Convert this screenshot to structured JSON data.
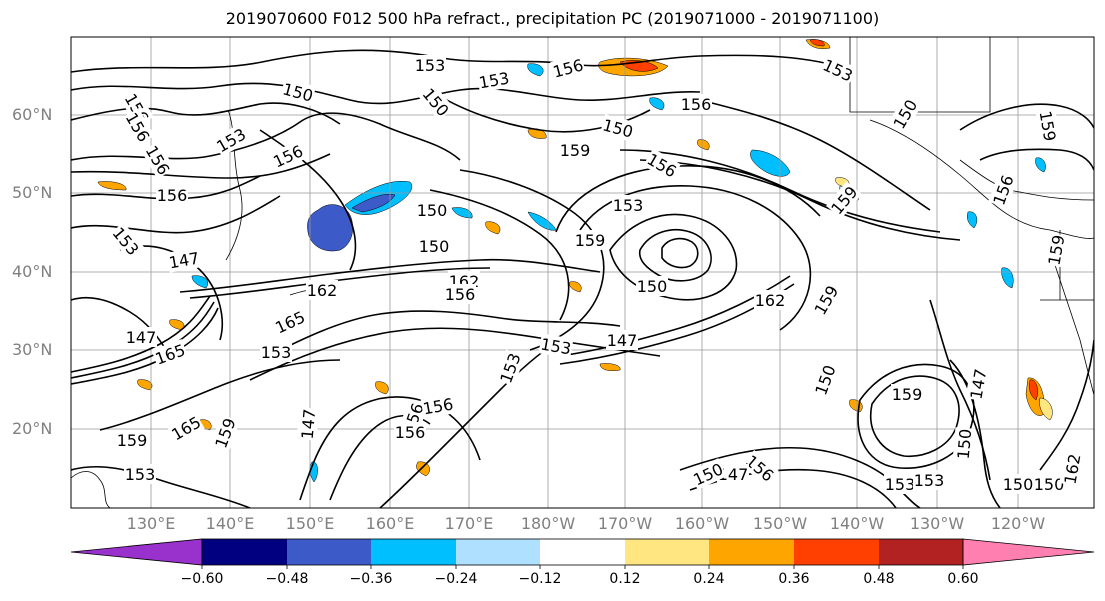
{
  "title": "2019070600 F012 500 hPa refract., precipitation PC (2019071000 - 2019071100)",
  "lat_labels": [
    "60°N",
    "50°N",
    "40°N",
    "30°N",
    "20°N"
  ],
  "lon_labels": [
    "130°E",
    "140°E",
    "150°E",
    "160°E",
    "170°E",
    "180°W",
    "170°W",
    "160°W",
    "150°W",
    "140°W",
    "130°W",
    "120°W"
  ],
  "colorbar": {
    "colors": [
      "#9932cc",
      "#000080",
      "#3c5ac8",
      "#00bfff",
      "#b0e0ff",
      "#ffffff",
      "#ffe680",
      "#ffa500",
      "#ff4000",
      "#b22222",
      "#ff80b0"
    ],
    "labels": [
      "−0.60",
      "−0.48",
      "−0.36",
      "−0.24",
      "−0.12",
      "0.12",
      "0.24",
      "0.36",
      "0.48",
      "0.60"
    ]
  },
  "contour_labels": [
    "153",
    "153",
    "156",
    "153",
    "150",
    "156",
    "156",
    "150",
    "156",
    "150",
    "156",
    "153",
    "156",
    "159",
    "156",
    "150",
    "159",
    "156",
    "156",
    "150",
    "159",
    "150",
    "153",
    "159",
    "153",
    "147",
    "150",
    "162",
    "162",
    "162",
    "159",
    "156",
    "165",
    "165",
    "147",
    "153",
    "153",
    "150",
    "147",
    "153",
    "156",
    "159",
    "156",
    "147",
    "165",
    "159",
    "159",
    "150",
    "153",
    "156",
    "147",
    "150",
    "153",
    "153",
    "150",
    "147",
    "150",
    "162",
    "156",
    "159"
  ],
  "shading_colors": {
    "blue": "#00bfff",
    "light_blue": "#b0e0ff",
    "royal": "#3c5ac8",
    "yellow": "#ffe680",
    "orange": "#ffa500",
    "red_orange": "#ff4000"
  }
}
